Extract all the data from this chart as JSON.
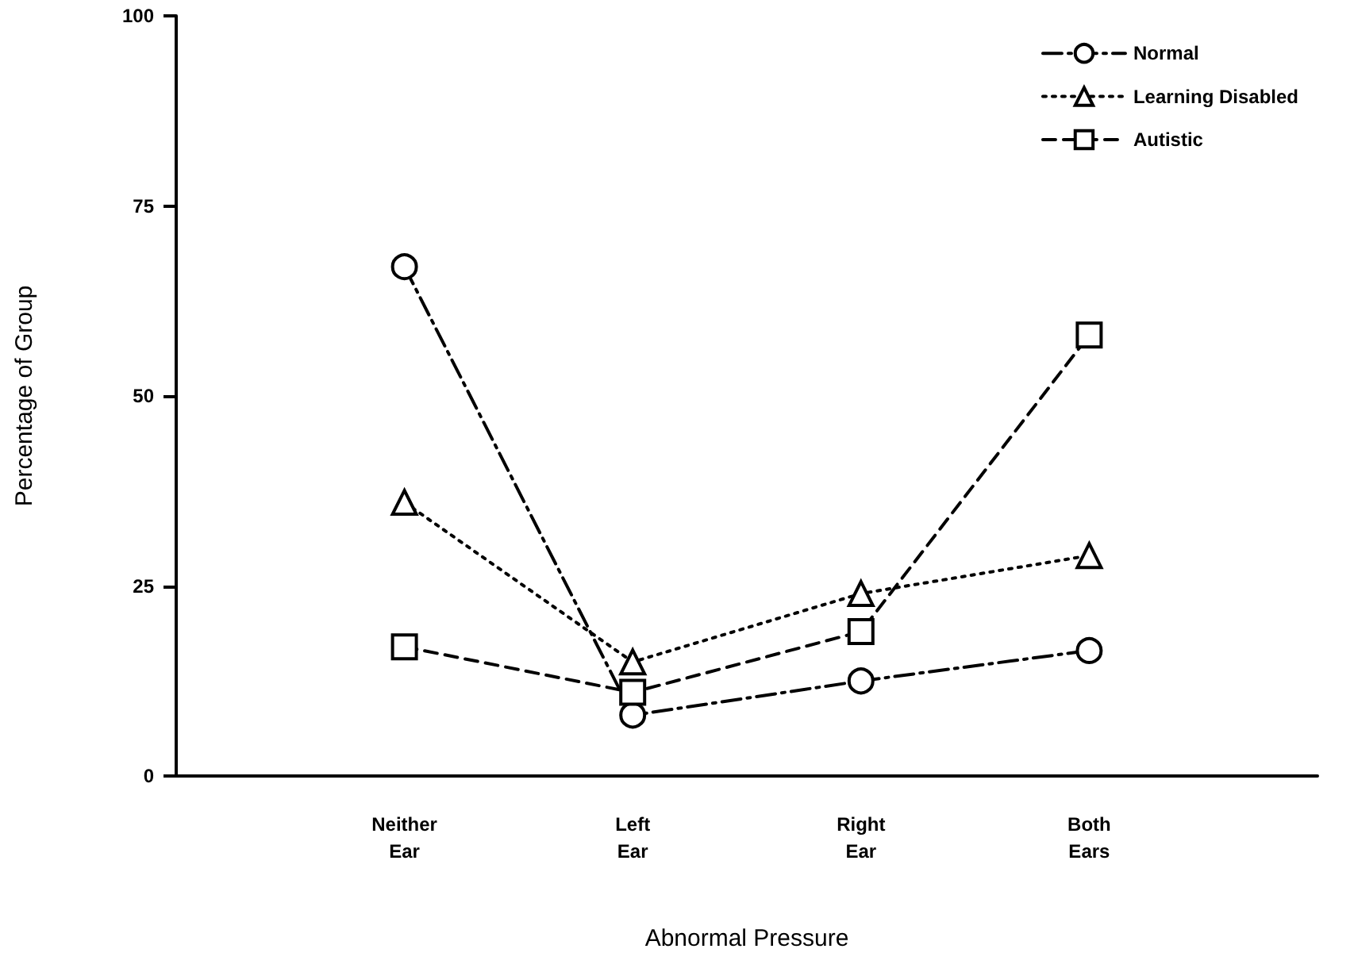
{
  "chart_data": {
    "type": "line",
    "xlabel": "Abnormal Pressure",
    "ylabel": "Percentage of Group",
    "categories": [
      "Neither Ear",
      "Left Ear",
      "Right Ear",
      "Both Ears"
    ],
    "series": [
      {
        "name": "Normal",
        "color": "#000000",
        "marker": "circle",
        "line_style": "dashdot",
        "values": [
          67,
          8,
          12.5,
          16.5
        ]
      },
      {
        "name": "Learning Disabled",
        "color": "#000000",
        "marker": "triangle",
        "line_style": "dotted",
        "values": [
          36,
          15,
          24,
          29
        ]
      },
      {
        "name": "Autistic",
        "color": "#000000",
        "marker": "square",
        "line_style": "dashed",
        "values": [
          17,
          11,
          19,
          58
        ]
      }
    ],
    "ylim": [
      0,
      100
    ],
    "yticks": [
      0,
      25,
      50,
      75,
      100
    ],
    "grid": false,
    "legend": "top right"
  }
}
